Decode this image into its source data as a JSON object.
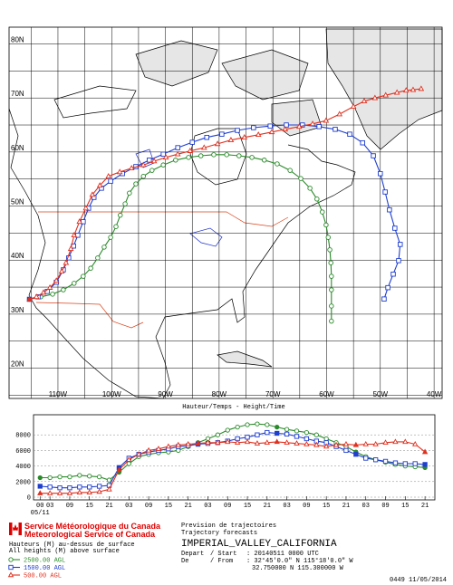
{
  "map": {
    "lonlim": [
      -119.1,
      -38.5
    ],
    "latlim": [
      14.4,
      83.1
    ],
    "lonticks": [
      {
        "value": -110,
        "label": "110W"
      },
      {
        "value": -100,
        "label": "100W"
      },
      {
        "value": -90,
        "label": "90W"
      },
      {
        "value": -80,
        "label": "80W"
      },
      {
        "value": -70,
        "label": "70W"
      },
      {
        "value": -60,
        "label": "60W"
      },
      {
        "value": -50,
        "label": "50W"
      },
      {
        "value": -40,
        "label": "40W"
      }
    ],
    "latticks": [
      {
        "value": 20,
        "label": "20N"
      },
      {
        "value": 30,
        "label": "30N"
      },
      {
        "value": 40,
        "label": "40N"
      },
      {
        "value": 50,
        "label": "50N"
      },
      {
        "value": 60,
        "label": "60N"
      },
      {
        "value": 70,
        "label": "70N"
      },
      {
        "value": 80,
        "label": "80N"
      }
    ],
    "trajectories": [
      {
        "lon": [
          -115.3,
          -113.2,
          -111.0,
          -109.0,
          -107.0,
          -105.3,
          -103.9,
          -102.6,
          -101.4,
          -100.2,
          -99.2,
          -98.4,
          -97.5,
          -96.7,
          -95.5,
          -94.1,
          -92.5,
          -90.4,
          -88.1,
          -85.7,
          -83.4,
          -81.0,
          -78.6,
          -76.3,
          -73.9,
          -71.6,
          -69.2,
          -66.8,
          -64.8,
          -63.1,
          -61.8,
          -60.8,
          -60.1,
          -59.7,
          -59.4,
          -59.2,
          -59.1,
          -59.1,
          -59.1,
          -59.1
        ],
        "lat": [
          32.75,
          33.2,
          33.7,
          34.5,
          35.7,
          37.0,
          38.5,
          40.4,
          42.4,
          44.2,
          46.2,
          48.3,
          50.4,
          52.4,
          54.1,
          55.5,
          56.6,
          57.6,
          58.5,
          59.0,
          59.3,
          59.5,
          59.5,
          59.3,
          59.0,
          58.5,
          57.8,
          56.6,
          55.1,
          53.3,
          51.3,
          48.9,
          46.5,
          44.2,
          41.9,
          39.5,
          37.0,
          34.5,
          31.5,
          28.7
        ]
      },
      {
        "lon": [
          -115.3,
          -113.7,
          -112.0,
          -110.3,
          -109.0,
          -108.0,
          -107.1,
          -106.3,
          -105.3,
          -104.3,
          -103.3,
          -101.9,
          -100.2,
          -98.0,
          -95.5,
          -93.0,
          -90.4,
          -87.7,
          -85.0,
          -82.3,
          -79.5,
          -76.6,
          -73.6,
          -70.5,
          -67.5,
          -64.5,
          -61.4,
          -58.4,
          -55.7,
          -53.3,
          -51.3,
          -50.0,
          -49.1,
          -48.3,
          -47.3,
          -46.3,
          -46.6,
          -47.6,
          -48.6,
          -49.3
        ],
        "lat": [
          32.75,
          33.2,
          34.2,
          35.9,
          38.2,
          40.4,
          42.6,
          44.6,
          47.1,
          49.6,
          51.6,
          53.3,
          54.6,
          56.0,
          57.3,
          58.5,
          59.6,
          60.8,
          61.8,
          62.7,
          63.3,
          64.0,
          64.5,
          64.8,
          65.0,
          65.0,
          64.7,
          64.2,
          63.3,
          61.7,
          59.3,
          56.0,
          52.6,
          49.3,
          45.9,
          42.9,
          39.9,
          37.4,
          34.9,
          32.8
        ]
      },
      {
        "lon": [
          -115.3,
          -114.0,
          -112.7,
          -111.5,
          -110.3,
          -109.3,
          -108.5,
          -107.6,
          -107.0,
          -106.0,
          -104.8,
          -103.6,
          -102.2,
          -100.6,
          -98.5,
          -96.3,
          -94.1,
          -92.1,
          -89.9,
          -87.7,
          -85.4,
          -82.8,
          -80.3,
          -77.8,
          -75.3,
          -72.7,
          -70.2,
          -67.7,
          -65.1,
          -62.6,
          -60.1,
          -57.6,
          -55.0,
          -53.0,
          -51.0,
          -49.0,
          -46.9,
          -45.2,
          -43.9,
          -42.4
        ],
        "lat": [
          32.75,
          33.2,
          34.0,
          34.9,
          36.2,
          37.9,
          39.5,
          42.1,
          44.6,
          47.1,
          49.6,
          52.1,
          53.8,
          55.5,
          56.3,
          57.0,
          57.6,
          58.3,
          59.0,
          59.6,
          60.2,
          60.8,
          61.5,
          62.2,
          62.7,
          63.2,
          63.7,
          64.2,
          64.7,
          65.2,
          65.8,
          67.0,
          68.4,
          69.4,
          70.0,
          70.5,
          71.0,
          71.4,
          71.5,
          71.7
        ]
      }
    ]
  },
  "chart_data": {
    "type": "line",
    "title": "Hauteur/Temps - Height/Time",
    "x": [
      0,
      3,
      6,
      9,
      12,
      15,
      18,
      21,
      24,
      27,
      30,
      33,
      36,
      39,
      42,
      45,
      48,
      51,
      54,
      57,
      60,
      63,
      66,
      69,
      72,
      75,
      78,
      81,
      84,
      87,
      90,
      93,
      96,
      99,
      102,
      105,
      108,
      111,
      114,
      117
    ],
    "date_label": "05/11",
    "xlim": [
      -2,
      120
    ],
    "xticks": [
      {
        "value": 0,
        "label": "00"
      },
      {
        "value": 3,
        "label": "03"
      },
      {
        "value": 9,
        "label": "09"
      },
      15,
      21,
      {
        "value": 27,
        "label": "03"
      },
      {
        "value": 33,
        "label": "09"
      },
      {
        "value": 39,
        "label": "15"
      },
      {
        "value": 45,
        "label": "21"
      },
      {
        "value": 51,
        "label": "03"
      },
      {
        "value": 57,
        "label": "09"
      },
      {
        "value": 63,
        "label": "15"
      },
      {
        "value": 69,
        "label": "21"
      },
      {
        "value": 75,
        "label": "03"
      },
      {
        "value": 81,
        "label": "09"
      },
      {
        "value": 87,
        "label": "15"
      },
      {
        "value": 93,
        "label": "21"
      },
      {
        "value": 99,
        "label": "03"
      },
      {
        "value": 105,
        "label": "09"
      },
      {
        "value": 111,
        "label": "15"
      },
      {
        "value": 117,
        "label": "21"
      }
    ],
    "ylim": [
      0,
      10000
    ],
    "yticks": [
      0,
      2000,
      4000,
      6000,
      8000
    ],
    "grid": true,
    "series": [
      {
        "name": "2500.00 AGL",
        "color": "#2a8a2a",
        "marker": "circle",
        "values": [
          2500,
          2500,
          2600,
          2600,
          2800,
          2700,
          2600,
          2200,
          3200,
          4300,
          5200,
          5500,
          5700,
          5800,
          6000,
          6500,
          7000,
          7500,
          8000,
          8600,
          9000,
          9300,
          9400,
          9300,
          9000,
          8700,
          8500,
          8300,
          8000,
          7500,
          7000,
          6500,
          5800,
          5200,
          4800,
          4500,
          4200,
          4000,
          3900,
          3800
        ]
      },
      {
        "name": "1500.00 AGL",
        "color": "#1f3fcf",
        "marker": "square",
        "values": [
          1400,
          1300,
          1200,
          1200,
          1300,
          1300,
          1400,
          1500,
          3800,
          5000,
          5500,
          5800,
          6000,
          6200,
          6500,
          6600,
          6800,
          6900,
          7000,
          7200,
          7500,
          7700,
          8000,
          8300,
          8200,
          8100,
          7800,
          7500,
          7200,
          7000,
          6500,
          6000,
          5500,
          5000,
          4800,
          4600,
          4400,
          4300,
          4300,
          4200
        ]
      },
      {
        "name": "500.00 AGL",
        "color": "#e0301e",
        "marker": "triangle",
        "values": [
          500,
          500,
          500,
          500,
          600,
          600,
          700,
          1000,
          3500,
          4800,
          5500,
          6000,
          6200,
          6500,
          6700,
          6800,
          6900,
          7000,
          7000,
          7100,
          7000,
          7100,
          6900,
          7000,
          7100,
          7000,
          6900,
          6800,
          6700,
          6500,
          6700,
          6800,
          6700,
          6800,
          6800,
          7000,
          7100,
          7100,
          6800,
          5800
        ]
      }
    ]
  },
  "footer": {
    "agency_fr": "Service Météorologique du Canada",
    "agency_en": "Meteorological Service of Canada",
    "heights_fr": "Hauteurs (M) au-dessus de surface",
    "heights_en": "All heights (M) above surface",
    "product_fr": "Prevision de trajectoires",
    "product_en": "Trajectory forecasts",
    "station": "IMPERIAL_VALLEY_CALIFORNIA",
    "start_fr": "Depart",
    "start_en": "/ Start",
    "start_value": ": 20140511 0000 UTC",
    "from_fr": "De",
    "from_en": "/ From",
    "from_value": ": 32°45'0.0\" N 115°18'0.0\" W",
    "from_decimal": "32.750000 N 115.300000 W",
    "issued": "0449 11/05/2014"
  }
}
